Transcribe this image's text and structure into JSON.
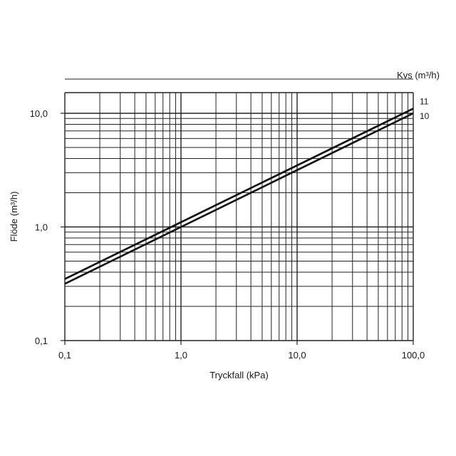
{
  "chart_data": {
    "type": "line",
    "xlabel": "Tryckfall (kPa)",
    "ylabel": "Flöde (m³/h)",
    "legend_title": "Kvs (m³/h)",
    "x_scale": "log",
    "y_scale": "log",
    "xlim": [
      0.1,
      100
    ],
    "ylim": [
      0.1,
      20
    ],
    "grid": true,
    "x_ticks": [
      {
        "value": 0.1,
        "label": "0,1"
      },
      {
        "value": 1,
        "label": "1,0"
      },
      {
        "value": 10,
        "label": "10,0"
      },
      {
        "value": 100,
        "label": "100,0"
      }
    ],
    "y_ticks": [
      {
        "value": 0.1,
        "label": "0,1"
      },
      {
        "value": 1,
        "label": "1,0"
      },
      {
        "value": 10,
        "label": "10,0"
      }
    ],
    "series": [
      {
        "name": "11",
        "kvs": 11,
        "x": [
          0.1,
          100
        ],
        "y": [
          0.348,
          11.0
        ]
      },
      {
        "name": "10",
        "kvs": 10,
        "x": [
          0.1,
          100
        ],
        "y": [
          0.316,
          10.0
        ]
      }
    ],
    "colors": {
      "line": "#111111",
      "grid": "#222222",
      "text": "#1a1a1a"
    }
  }
}
